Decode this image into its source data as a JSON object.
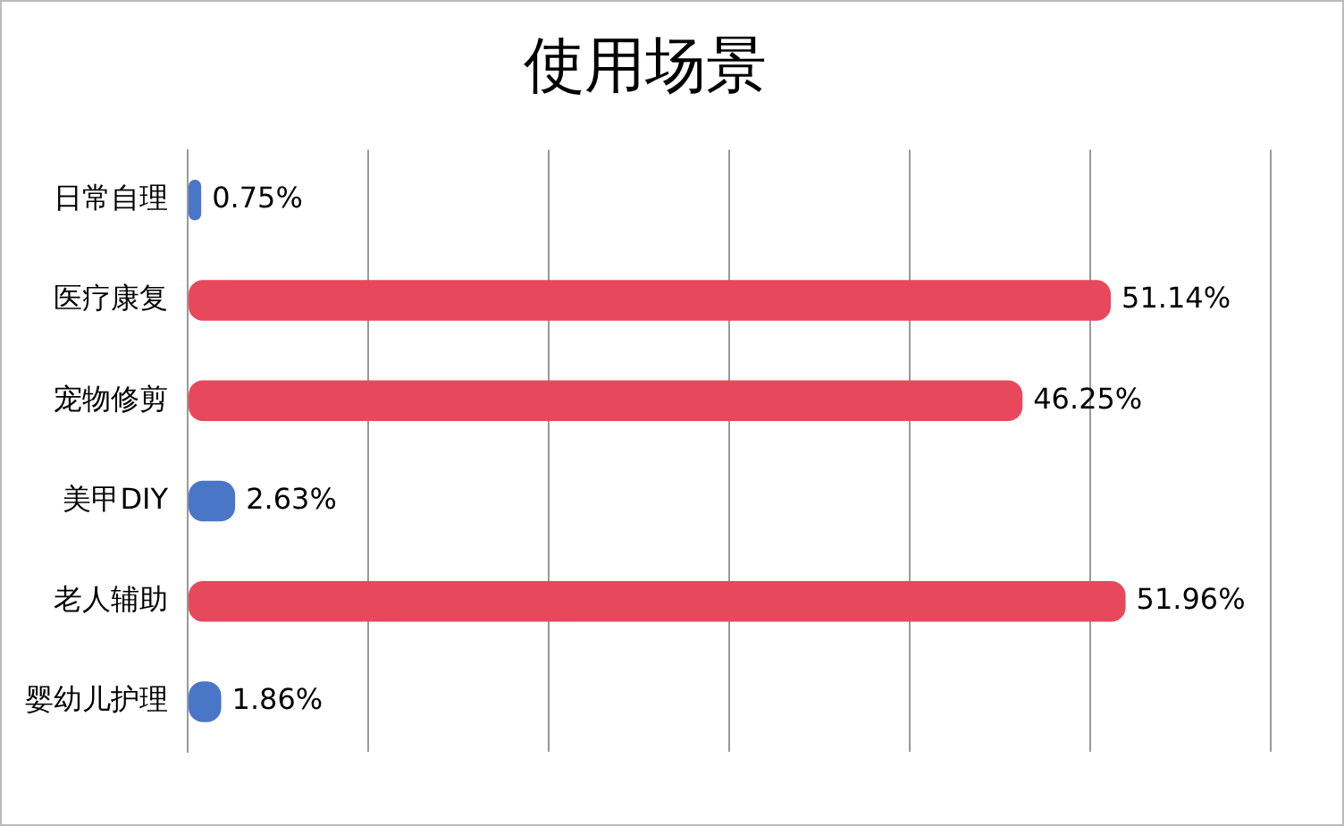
{
  "chart_data": {
    "type": "bar",
    "orientation": "horizontal",
    "title": "使用场景",
    "categories": [
      "日常自理",
      "医疗康复",
      "宠物修剪",
      "美甲DIY",
      "老人辅助",
      "婴幼儿护理"
    ],
    "values": [
      0.75,
      51.14,
      46.25,
      2.63,
      51.96,
      1.86
    ],
    "value_labels": [
      "0.75%",
      "51.14%",
      "46.25%",
      "2.63%",
      "51.96%",
      "1.86%"
    ],
    "colors": [
      "#4a76c8",
      "#e8485c",
      "#e8485c",
      "#4a76c8",
      "#e8485c",
      "#4a76c8"
    ],
    "xlim": [
      0,
      60
    ],
    "xticks": [
      {
        "value": 0,
        "label": null
      },
      {
        "value": 10,
        "label": null
      },
      {
        "value": 20,
        "label": null
      },
      {
        "value": 30,
        "label": null
      },
      {
        "value": 40,
        "label": null
      },
      {
        "value": 50,
        "label": null
      },
      {
        "value": 60,
        "label": null
      }
    ],
    "grid": "x",
    "legend": false
  }
}
